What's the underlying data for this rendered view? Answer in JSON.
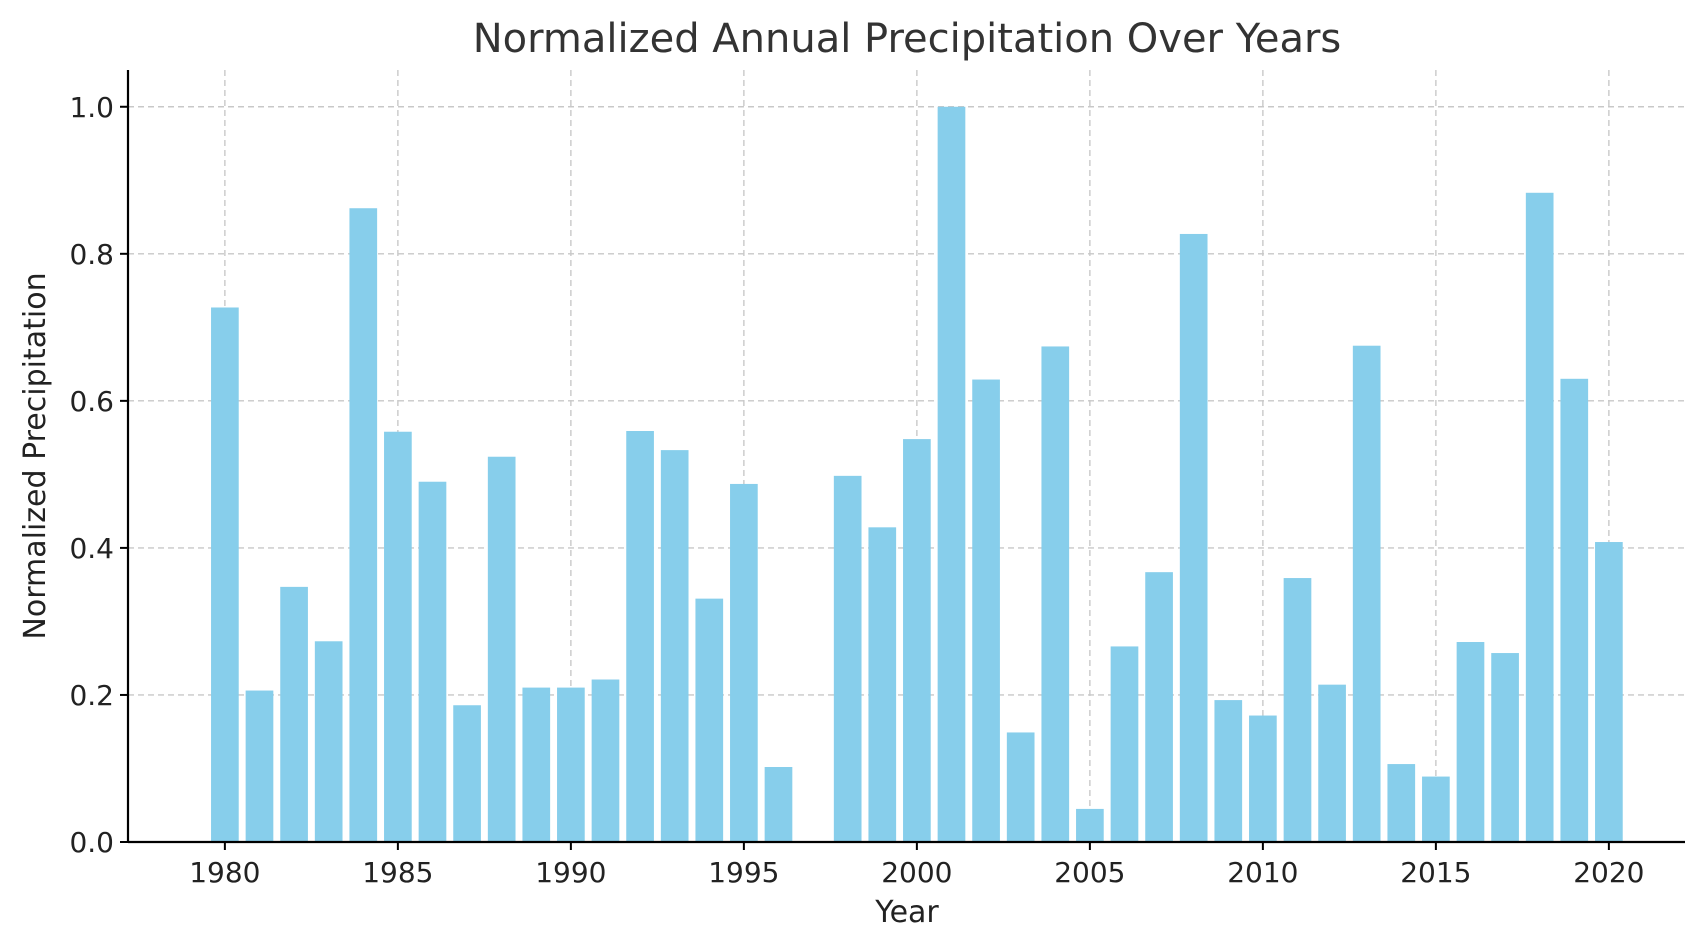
{
  "chart_data": {
    "type": "bar",
    "title": "Normalized Annual Precipitation Over Years",
    "xlabel": "Year",
    "ylabel": "Normalized Precipitation",
    "xlim": [
      1977.2,
      2022.2
    ],
    "ylim": [
      0,
      1.05
    ],
    "x_ticks": [
      1980,
      1985,
      1990,
      1995,
      2000,
      2005,
      2010,
      2015,
      2020
    ],
    "y_ticks": [
      0.0,
      0.2,
      0.4,
      0.6,
      0.8,
      1.0
    ],
    "y_tick_labels": [
      "0.0",
      "0.2",
      "0.4",
      "0.6",
      "0.8",
      "1.0"
    ],
    "grid": true,
    "bar_color": "#87CEEB",
    "series": [
      {
        "x": [
          1980,
          1981,
          1982,
          1983,
          1984,
          1985,
          1986,
          1987,
          1988,
          1989,
          1990,
          1991,
          1992,
          1993,
          1994,
          1995,
          1996,
          1998,
          1999,
          2000,
          2001,
          2002,
          2003,
          2004,
          2005,
          2006,
          2007,
          2008,
          2009,
          2010,
          2011,
          2012,
          2013,
          2014,
          2015,
          2016,
          2017,
          2018,
          2019,
          2020
        ],
        "values": [
          0.727,
          0.206,
          0.347,
          0.273,
          0.862,
          0.558,
          0.49,
          0.186,
          0.524,
          0.21,
          0.21,
          0.221,
          0.559,
          0.533,
          0.331,
          0.487,
          0.102,
          0.498,
          0.428,
          0.548,
          1.0,
          0.629,
          0.149,
          0.674,
          0.045,
          0.266,
          0.367,
          0.827,
          0.193,
          0.172,
          0.359,
          0.214,
          0.675,
          0.106,
          0.089,
          0.272,
          0.257,
          0.883,
          0.63,
          0.408
        ]
      }
    ]
  }
}
